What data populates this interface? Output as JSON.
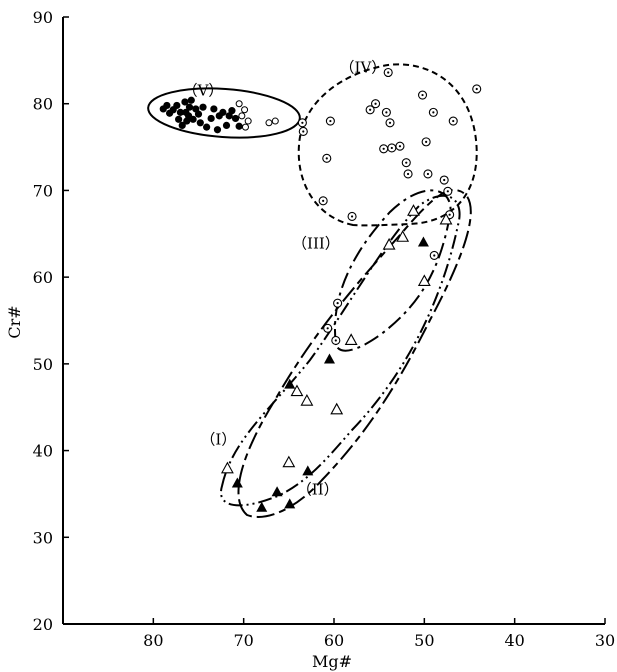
{
  "chart_data": {
    "type": "scatter",
    "title": "",
    "xlabel": "Mg#",
    "ylabel": "Cr#",
    "xlim": [
      90,
      30
    ],
    "ylim": [
      20,
      90
    ],
    "x_reversed": true,
    "xticks": [
      80,
      70,
      60,
      50,
      40,
      30
    ],
    "yticks": [
      20,
      30,
      40,
      50,
      60,
      70,
      80,
      90
    ],
    "grid": false,
    "series": [
      {
        "marker": "filled-circle",
        "points": [
          [
            78.9,
            79.4
          ],
          [
            78.5,
            79.8
          ],
          [
            78.2,
            78.9
          ],
          [
            77.8,
            79.3
          ],
          [
            77.4,
            79.8
          ],
          [
            77.2,
            78.2
          ],
          [
            77.0,
            79.0
          ],
          [
            76.8,
            77.5
          ],
          [
            76.5,
            80.2
          ],
          [
            76.4,
            79.0
          ],
          [
            76.1,
            78.6
          ],
          [
            76.0,
            79.6
          ],
          [
            75.8,
            80.4
          ],
          [
            75.6,
            78.2
          ],
          [
            75.3,
            79.4
          ],
          [
            75.0,
            78.8
          ],
          [
            74.8,
            77.8
          ],
          [
            74.5,
            79.6
          ],
          [
            74.1,
            77.3
          ],
          [
            73.6,
            78.3
          ],
          [
            73.3,
            79.4
          ],
          [
            72.9,
            77.0
          ],
          [
            72.7,
            78.6
          ],
          [
            72.3,
            79.0
          ],
          [
            71.9,
            77.5
          ],
          [
            71.6,
            78.6
          ],
          [
            71.3,
            79.2
          ],
          [
            70.9,
            78.3
          ],
          [
            70.5,
            77.4
          ],
          [
            76.3,
            78.0
          ]
        ]
      },
      {
        "marker": "open-circle",
        "points": [
          [
            70.5,
            80.0
          ],
          [
            70.2,
            78.6
          ],
          [
            69.8,
            77.3
          ],
          [
            69.9,
            79.3
          ],
          [
            69.5,
            78.0
          ],
          [
            67.2,
            77.8
          ],
          [
            66.5,
            78.0
          ]
        ]
      },
      {
        "marker": "dotted-circle",
        "points": [
          [
            63.5,
            77.8
          ],
          [
            63.4,
            76.8
          ],
          [
            60.4,
            78.0
          ],
          [
            60.8,
            73.7
          ],
          [
            61.2,
            68.8
          ],
          [
            58.0,
            67.0
          ],
          [
            54.0,
            83.6
          ],
          [
            56.0,
            79.3
          ],
          [
            55.4,
            80.0
          ],
          [
            54.2,
            79.0
          ],
          [
            53.8,
            77.8
          ],
          [
            54.5,
            74.8
          ],
          [
            53.6,
            74.9
          ],
          [
            52.7,
            75.1
          ],
          [
            52.0,
            73.2
          ],
          [
            51.8,
            71.9
          ],
          [
            50.2,
            81.0
          ],
          [
            49.8,
            75.6
          ],
          [
            49.6,
            71.9
          ],
          [
            49.0,
            79.0
          ],
          [
            46.8,
            78.0
          ],
          [
            44.2,
            81.7
          ],
          [
            47.8,
            71.2
          ],
          [
            47.4,
            69.9
          ],
          [
            47.2,
            67.2
          ],
          [
            48.9,
            62.5
          ],
          [
            59.6,
            57.0
          ],
          [
            60.7,
            54.1
          ],
          [
            59.8,
            52.7
          ]
        ]
      },
      {
        "marker": "open-triangle",
        "points": [
          [
            51.2,
            67.6
          ],
          [
            47.6,
            66.6
          ],
          [
            52.4,
            64.6
          ],
          [
            53.9,
            63.7
          ],
          [
            50.0,
            59.5
          ],
          [
            58.1,
            52.7
          ],
          [
            64.1,
            46.8
          ],
          [
            63.0,
            45.7
          ],
          [
            59.7,
            44.7
          ],
          [
            65.0,
            38.6
          ],
          [
            71.8,
            37.9
          ]
        ]
      },
      {
        "marker": "filled-triangle",
        "points": [
          [
            50.1,
            64.0
          ],
          [
            60.5,
            50.5
          ],
          [
            64.9,
            47.6
          ],
          [
            62.9,
            37.6
          ],
          [
            70.7,
            36.2
          ],
          [
            66.3,
            35.2
          ],
          [
            64.9,
            33.8
          ],
          [
            68.0,
            33.4
          ]
        ]
      }
    ],
    "annotations": [
      {
        "text": "（V）",
        "x": 74.5,
        "y": 81.5
      },
      {
        "text": "（IV）",
        "x": 56.8,
        "y": 84.2
      },
      {
        "text": "（III）",
        "x": 62.0,
        "y": 63.9
      },
      {
        "text": "（I）",
        "x": 72.8,
        "y": 41.3
      },
      {
        "text": "（II）",
        "x": 61.8,
        "y": 35.5
      }
    ]
  }
}
